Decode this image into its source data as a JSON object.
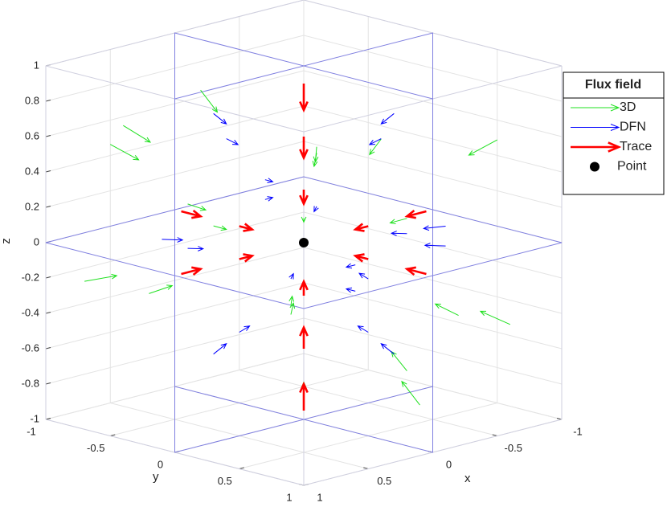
{
  "chart_data": {
    "type": "quiver3",
    "xlabel": "x",
    "ylabel": "y",
    "zlabel": "z",
    "xlim": [
      -1,
      1
    ],
    "ylim": [
      -1,
      1
    ],
    "zlim": [
      -1,
      1
    ],
    "xticks": [
      -1,
      -0.5,
      0,
      0.5,
      1
    ],
    "yticks": [
      -1,
      -0.5,
      0,
      0.5,
      1
    ],
    "zticks": [
      -1,
      -0.8,
      -0.6,
      -0.4,
      -0.2,
      0,
      0.2,
      0.4,
      0.6,
      0.8,
      1
    ],
    "grid": true,
    "legend_title": "Flux field",
    "legend_position": "northeast",
    "series": [
      {
        "name": "3D",
        "color": "#1fe01f",
        "x": [
          0.8,
          -0.7,
          0.6,
          -0.6,
          0.9,
          -0.8,
          0.3,
          -0.3,
          0.5,
          -0.4,
          0.7,
          -0.7,
          0.9,
          -0.9,
          0.2,
          -0.2,
          0.4,
          -0.5,
          0.6,
          -0.6
        ],
        "y": [
          -0.6,
          0.8,
          0.6,
          -0.7,
          0.2,
          -0.2,
          -0.9,
          0.9,
          -0.3,
          0.5,
          0.7,
          -0.6,
          -0.8,
          0.7,
          0.3,
          -0.3,
          -0.5,
          0.3,
          -0.9,
          0.2
        ],
        "z": [
          0.7,
          0.6,
          -0.7,
          -0.6,
          0.3,
          0.4,
          -0.4,
          -0.3,
          0.9,
          -0.9,
          0.4,
          0.3,
          -0.2,
          -0.5,
          0.6,
          -0.5,
          0.2,
          0.1,
          0.5,
          -0.8
        ],
        "u": [
          -0.12,
          0.1,
          -0.09,
          0.09,
          -0.13,
          0.12,
          -0.05,
          0.05,
          -0.08,
          0.06,
          -0.1,
          0.1,
          -0.13,
          0.13,
          -0.03,
          0.03,
          -0.06,
          0.08,
          -0.09,
          0.09
        ],
        "v": [
          0.09,
          -0.12,
          -0.09,
          0.1,
          -0.03,
          0.03,
          0.13,
          -0.13,
          0.05,
          -0.08,
          -0.1,
          0.09,
          0.12,
          -0.1,
          -0.05,
          0.05,
          0.08,
          -0.05,
          0.13,
          -0.03
        ],
        "w": [
          -0.1,
          -0.09,
          0.1,
          0.09,
          -0.05,
          -0.06,
          0.06,
          0.05,
          -0.13,
          0.13,
          -0.06,
          -0.05,
          0.03,
          0.08,
          -0.09,
          0.08,
          -0.03,
          -0.02,
          -0.08,
          0.12
        ]
      },
      {
        "name": "DFN",
        "color": "#0000ff",
        "x": [
          0,
          0,
          0,
          0,
          0,
          0,
          0,
          0,
          -0.7,
          0.6,
          -0.5,
          0.7,
          0.3,
          -0.4,
          0.6,
          -0.5,
          0.5,
          -0.6,
          0.3,
          -0.8
        ],
        "y": [
          -0.7,
          0.6,
          -0.5,
          0.7,
          -0.3,
          0.4,
          -0.9,
          0.8,
          0,
          0,
          0,
          0,
          0,
          0,
          0.5,
          0.6,
          -0.6,
          -0.5,
          0.8,
          0.3
        ],
        "z": [
          0.6,
          0.7,
          -0.6,
          -0.5,
          0.3,
          -0.2,
          -0.2,
          0.2,
          0.6,
          0.7,
          -0.6,
          -0.5,
          0.3,
          -0.2,
          0,
          0,
          0,
          0,
          0,
          0
        ],
        "u": [
          0,
          0,
          0,
          0,
          0,
          0,
          0,
          0,
          0.1,
          -0.09,
          0.08,
          -0.1,
          -0.06,
          0.07,
          -0.09,
          0.07,
          -0.07,
          0.09,
          -0.05,
          0.12
        ],
        "v": [
          0.1,
          -0.09,
          0.08,
          -0.1,
          0.06,
          -0.07,
          0.12,
          -0.12,
          0,
          0,
          0,
          0,
          0,
          0,
          -0.07,
          -0.09,
          0.09,
          0.07,
          -0.12,
          -0.05
        ],
        "w": [
          -0.04,
          -0.05,
          0.05,
          0.04,
          0,
          0,
          0.02,
          -0.02,
          -0.04,
          -0.05,
          0.05,
          0.04,
          0,
          0,
          0,
          0,
          0,
          0,
          0,
          0
        ]
      },
      {
        "name": "Trace",
        "color": "#ff0000",
        "x": [
          0,
          0,
          0,
          0,
          0,
          0,
          0.95,
          0.5,
          -0.95,
          -0.5,
          0,
          0,
          0,
          0
        ],
        "y": [
          0,
          0,
          0,
          0,
          0,
          0,
          0,
          0,
          0,
          0,
          0.95,
          0.5,
          -0.95,
          -0.5
        ],
        "z": [
          -0.95,
          -0.6,
          -0.3,
          0.9,
          0.6,
          0.3,
          0,
          0,
          0,
          0,
          0,
          0,
          0,
          0
        ],
        "u": [
          0,
          0,
          0,
          0,
          0,
          0,
          -0.15,
          -0.1,
          0.15,
          0.1,
          0,
          0,
          0,
          0
        ],
        "v": [
          0,
          0,
          0,
          0,
          0,
          0,
          0,
          0,
          0,
          0,
          -0.15,
          -0.1,
          0.15,
          0.1
        ],
        "w": [
          0.15,
          0.12,
          0.08,
          -0.15,
          -0.12,
          -0.08,
          0,
          0,
          0,
          0,
          0,
          0,
          0,
          0
        ]
      },
      {
        "name": "Point",
        "color": "#000000",
        "x": [
          0
        ],
        "y": [
          0
        ],
        "z": [
          0
        ]
      }
    ]
  }
}
